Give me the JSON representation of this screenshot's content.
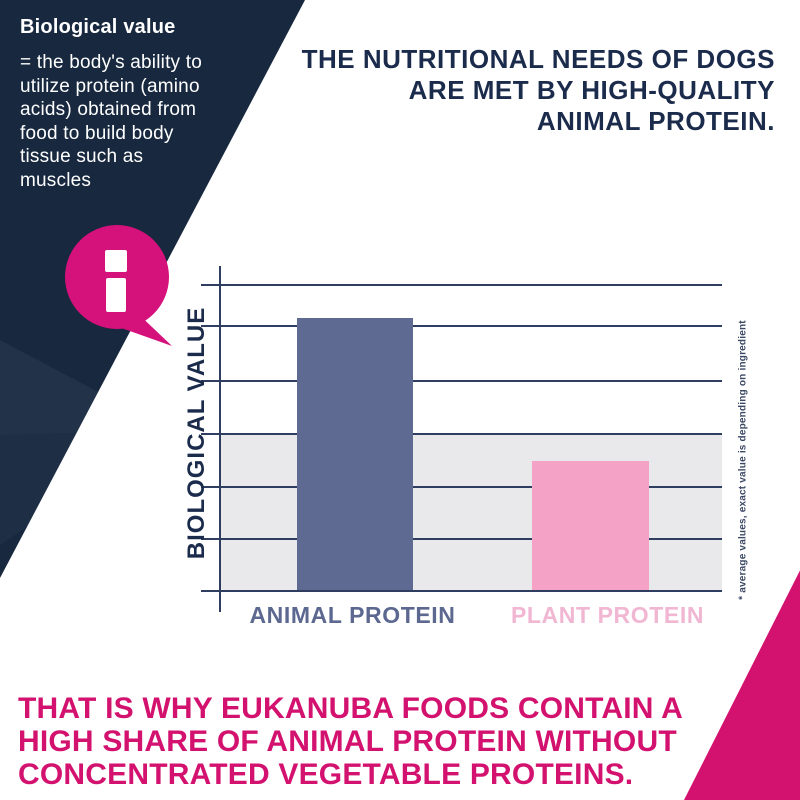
{
  "info_panel": {
    "heading": "Biological value",
    "lines": [
      "= the body's ability to",
      "utilize protein (amino",
      "acids) obtained from",
      "food to build body",
      "tissue such as",
      "muscles"
    ]
  },
  "headline": {
    "lines": [
      "THE NUTRITIONAL NEEDS OF DOGS",
      "ARE MET BY HIGH-QUALITY",
      "ANIMAL PROTEIN."
    ]
  },
  "chart_data": {
    "type": "bar",
    "categories": [
      "ANIMAL PROTEIN",
      "PLANT PROTEIN"
    ],
    "values": [
      89,
      42
    ],
    "title": "",
    "xlabel": "",
    "ylabel": "BIOLOGICAL VALUE",
    "ylim": [
      0,
      100
    ],
    "grid": true,
    "legend": "none",
    "footnote": "* average values, exact value is depending on ingredient",
    "bar_colors": [
      "#5f6a92",
      "#f4a3c7"
    ],
    "label_colors": [
      "#5c6890",
      "#f0b6d2"
    ]
  },
  "footer": {
    "lines": [
      "THAT IS WHY EUKANUBA FOODS CONTAIN A",
      "HIGH SHARE OF ANIMAL PROTEIN WITHOUT",
      "CONCENTRATED VEGETABLE PROTEINS."
    ]
  },
  "icons": {
    "info": "i"
  },
  "colors": {
    "navy": "#17283f",
    "headline_text": "#1b2b4b",
    "magenta": "#d3126f",
    "bubble_magenta": "#d5117b",
    "gray_band": "#e9e9ec"
  }
}
